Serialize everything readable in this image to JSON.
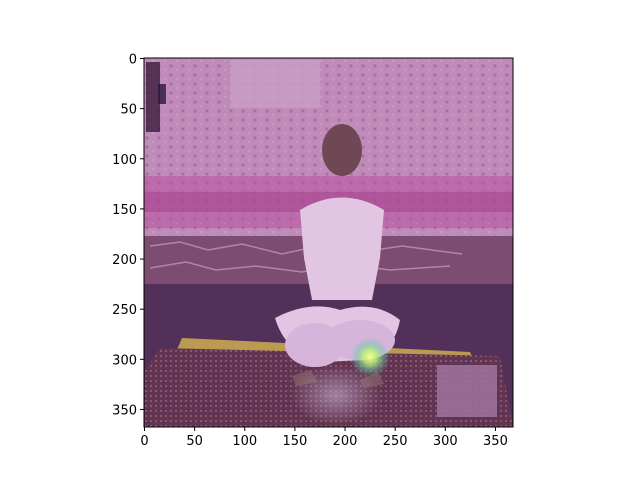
{
  "image": {
    "description_icon": "meditation-photo-heatmap-overlay",
    "colors": {
      "background_wall": "#c79ac0",
      "floor": "#4a2f52",
      "mat": "#c2a94a",
      "rug": "#5a3448",
      "heat_hotspot": "#e8f56a",
      "figure_clothes": "#eed8ef"
    }
  },
  "axes": {
    "x_ticks": [
      "0",
      "50",
      "100",
      "150",
      "200",
      "250",
      "300",
      "350"
    ],
    "y_ticks": [
      "0",
      "50",
      "100",
      "150",
      "200",
      "250",
      "300",
      "350"
    ],
    "x_values": [
      0,
      50,
      100,
      150,
      200,
      250,
      300,
      350
    ],
    "y_values": [
      0,
      50,
      100,
      150,
      200,
      250,
      300,
      350
    ],
    "xlim": [
      -0.5,
      367.5
    ],
    "ylim": [
      367.5,
      -0.5
    ]
  }
}
